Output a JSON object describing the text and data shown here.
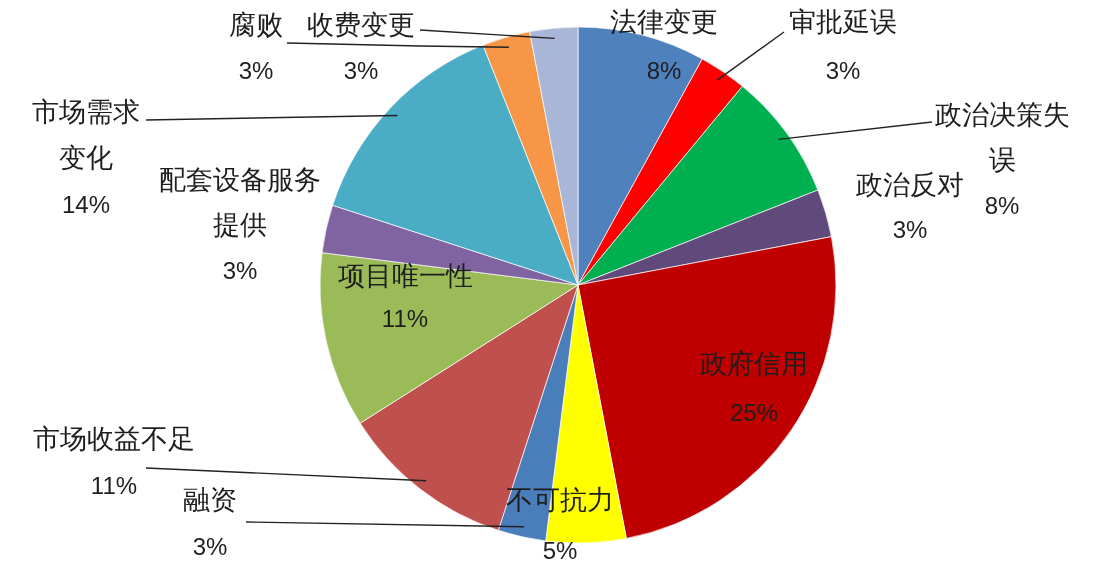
{
  "chart_data": {
    "type": "pie",
    "categories": [
      "法律变更",
      "审批延误",
      "政治决策失误",
      "政治反对",
      "政府信用",
      "不可抗力",
      "融资",
      "市场收益不足",
      "项目唯一性",
      "配套设备服务提供",
      "市场需求变化",
      "腐败",
      "收费变更"
    ],
    "values": [
      8,
      3,
      8,
      3,
      25,
      5,
      3,
      11,
      11,
      3,
      14,
      3,
      3
    ],
    "colors": [
      "#4f81bd",
      "#ff0000",
      "#00b050",
      "#604a7b",
      "#c00000",
      "#ffff00",
      "#4a7ebb",
      "#c0504d",
      "#9bbb59",
      "#8064a2",
      "#4bacc6",
      "#f79646",
      "#aab6d8"
    ],
    "value_labels": [
      "8%",
      "3%",
      "8%",
      "3%",
      "25%",
      "5%",
      "3%",
      "11%",
      "11%",
      "3%",
      "14%",
      "3%",
      "3%"
    ]
  }
}
